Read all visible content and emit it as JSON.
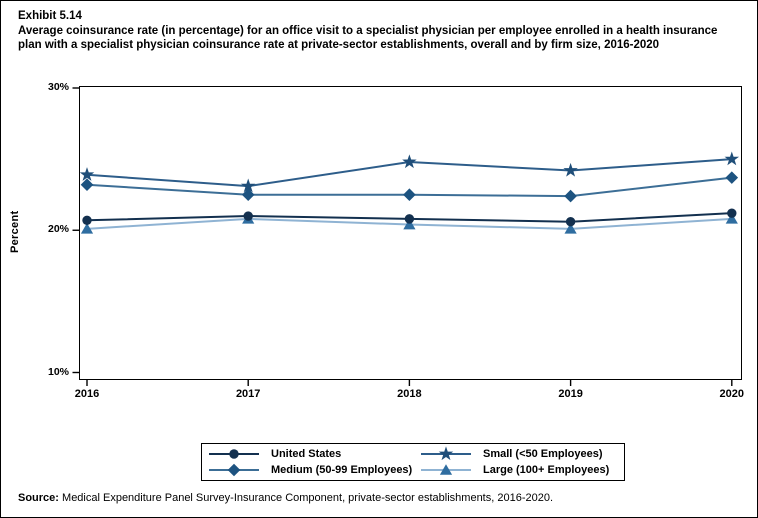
{
  "header": {
    "exhibit": "Exhibit 5.14",
    "title": "Average coinsurance rate (in percentage) for an office visit to a specialist physician per employee enrolled in a health insurance plan with a specialist physician coinsurance rate at private-sector establishments, overall and by firm size, 2016-2020"
  },
  "chart_data": {
    "type": "line",
    "x": [
      2016,
      2017,
      2018,
      2019,
      2020
    ],
    "xtick_labels": [
      "2016",
      "2017",
      "2018",
      "2019",
      "2020"
    ],
    "series": [
      {
        "name": "United States",
        "marker": "circle",
        "marker_color": "#13304f",
        "line_color": "#13304f",
        "values": [
          20.7,
          21.0,
          20.8,
          20.6,
          21.2
        ]
      },
      {
        "name": "Medium (50-99 Employees)",
        "marker": "diamond",
        "marker_color": "#1d5380",
        "line_color": "#3c6e96",
        "values": [
          23.2,
          22.5,
          22.5,
          22.4,
          23.7
        ]
      },
      {
        "name": "Small (<50 Employees)",
        "marker": "star",
        "marker_color": "#1f4e79",
        "line_color": "#2d5d8a",
        "values": [
          23.9,
          23.1,
          24.8,
          24.2,
          25.0
        ]
      },
      {
        "name": "Large (100+ Employees)",
        "marker": "triangle",
        "marker_color": "#2f6da0",
        "line_color": "#8fb3d3",
        "values": [
          20.1,
          20.8,
          20.4,
          20.1,
          20.8
        ]
      }
    ],
    "title": "Average coinsurance rate for an office visit to a specialist physician, 2016-2020",
    "xlabel": "",
    "ylabel": "Percent",
    "yticks": [
      {
        "label": "30%",
        "value": 30
      },
      {
        "label": "20%",
        "value": 20
      },
      {
        "label": "10%",
        "value": 10
      }
    ],
    "ylim": [
      9.5,
      30.1
    ],
    "grid": false,
    "legend_position": "bottom",
    "axis_color": "#000000"
  },
  "legend": {
    "order": [
      0,
      2,
      1,
      3
    ]
  },
  "source": {
    "label": "Source:",
    "text": " Medical Expenditure Panel Survey-Insurance Component, private-sector establishments, 2016-2020."
  }
}
